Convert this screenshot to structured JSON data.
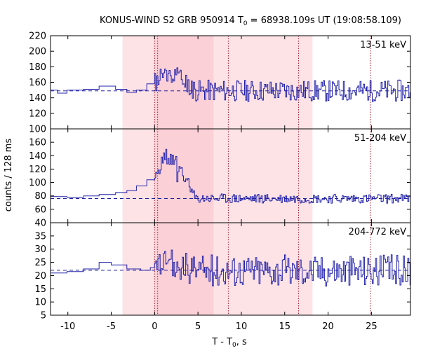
{
  "chart_data": {
    "type": "line",
    "title": "KONUS-WIND S2 GRB 950914 T",
    "title_sub": "0",
    "title_rest": " = 68938.109s UT (19:08:58.109)",
    "xlabel": "T - T",
    "xlabel_sub": "0",
    "xlabel_rest": ", s",
    "ylabel": "counts / 128 ms",
    "xlim": [
      -12,
      29.5
    ],
    "x_ticks": [
      -10,
      -5,
      0,
      5,
      10,
      15,
      20,
      25
    ],
    "x_tick_labels": [
      "-10",
      "-5",
      "0",
      "5",
      "10",
      "15",
      "20",
      "25"
    ],
    "shaded_intervals": [
      {
        "x0": -3.7,
        "x1": 18.2,
        "color": "#fde3e6"
      },
      {
        "x0": 0.0,
        "x1": 6.8,
        "color": "#fbd0d6"
      }
    ],
    "vertical_dotted_lines": [
      0.0,
      0.35,
      8.5,
      16.6,
      24.9
    ],
    "line_color": "#2222aa",
    "background_color": "#1a1aa0",
    "panels": [
      {
        "label": "13-51 keV",
        "ylim": [
          100,
          220
        ],
        "y_ticks": [
          100,
          120,
          140,
          160,
          180,
          200,
          220
        ],
        "y_tick_labels": [
          "100",
          "120",
          "140",
          "160",
          "180",
          "200",
          "220"
        ],
        "background": 149,
        "seed": 11,
        "steps": [
          [
            -12.0,
            150
          ],
          [
            -11.2,
            146
          ],
          [
            -10.1,
            150
          ],
          [
            -8.2,
            151
          ],
          [
            -6.4,
            155
          ],
          [
            -4.5,
            151
          ],
          [
            -3.2,
            147
          ],
          [
            -2.1,
            150
          ],
          [
            -0.9,
            158
          ]
        ],
        "burst_peak": 172,
        "noise_amp": 14
      },
      {
        "label": "51-204 keV",
        "ylim": [
          40,
          180
        ],
        "y_ticks": [
          40,
          60,
          80,
          100,
          120,
          140,
          160
        ],
        "y_tick_labels": [
          "40",
          "60",
          "80",
          "100",
          "120",
          "140",
          "160"
        ],
        "background": 76,
        "seed": 23,
        "steps": [
          [
            -12.0,
            79
          ],
          [
            -10.1,
            78
          ],
          [
            -8.2,
            80
          ],
          [
            -6.4,
            82
          ],
          [
            -4.5,
            85
          ],
          [
            -3.2,
            88
          ],
          [
            -2.1,
            95
          ],
          [
            -0.9,
            104
          ]
        ],
        "burst_peak": 138,
        "noise_amp": 7
      },
      {
        "label": "204-772 keV",
        "ylim": [
          5,
          40
        ],
        "y_ticks": [
          5,
          10,
          15,
          20,
          25,
          30,
          35
        ],
        "y_tick_labels": [
          "5",
          "10",
          "15",
          "20",
          "25",
          "30",
          "35"
        ],
        "background": 22,
        "seed": 37,
        "steps": [
          [
            -12.0,
            21
          ],
          [
            -10.1,
            21.5
          ],
          [
            -8.2,
            22.5
          ],
          [
            -6.4,
            25
          ],
          [
            -5.0,
            24
          ],
          [
            -3.2,
            22.5
          ],
          [
            -1.6,
            22
          ],
          [
            -0.5,
            23
          ]
        ],
        "burst_peak": 24,
        "noise_amp": 6
      }
    ]
  }
}
